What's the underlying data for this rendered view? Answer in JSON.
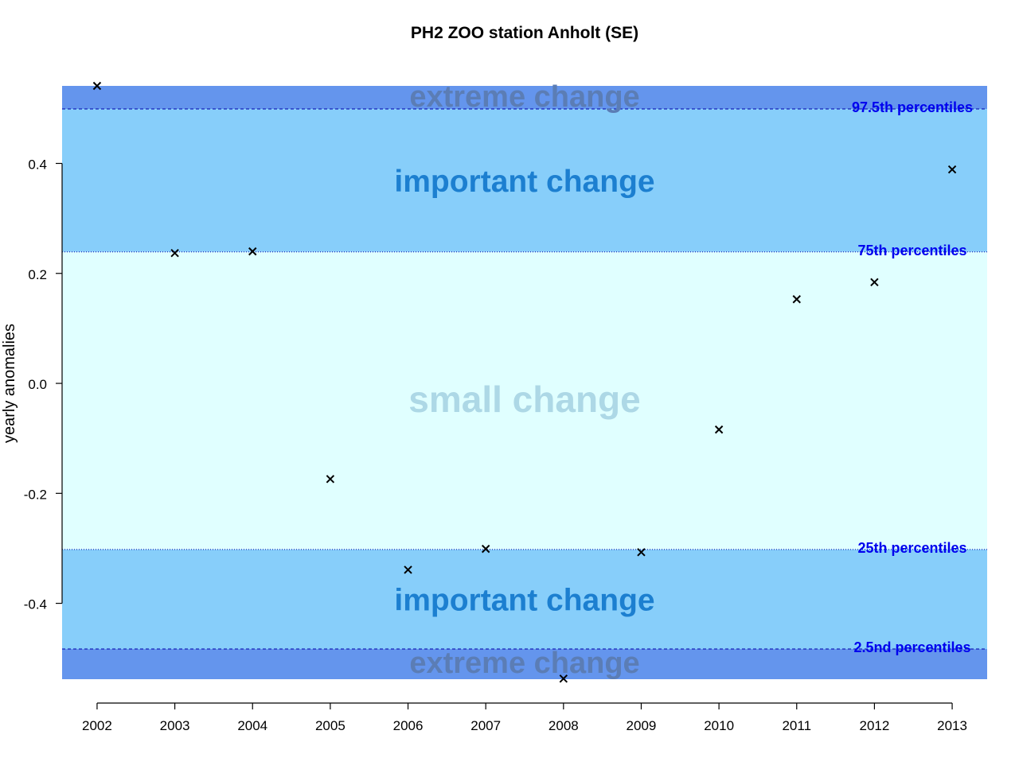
{
  "chart_data": {
    "type": "scatter",
    "title": "PH2 ZOO station Anholt (SE)",
    "xlabel": "",
    "ylabel": "yearly anomalies",
    "x": [
      2002,
      2003,
      2004,
      2005,
      2006,
      2007,
      2008,
      2009,
      2010,
      2011,
      2012,
      2013
    ],
    "y": [
      0.541,
      0.237,
      0.24,
      -0.174,
      -0.339,
      -0.301,
      -0.537,
      -0.307,
      -0.084,
      0.153,
      0.184,
      0.389
    ],
    "xlim": [
      2001.55,
      2013.45
    ],
    "ylim": [
      -0.538,
      0.541
    ],
    "x_ticks": [
      "2002",
      "2003",
      "2004",
      "2005",
      "2006",
      "2007",
      "2008",
      "2009",
      "2010",
      "2011",
      "2012",
      "2013"
    ],
    "y_ticks": [
      0.4,
      0.2,
      0.0,
      -0.2,
      -0.4
    ],
    "y_tick_labels": [
      "0.4",
      "0.2",
      "0.0",
      "-0.2",
      "-0.4"
    ],
    "marker": "x",
    "grid": false,
    "thresholds": [
      {
        "label": "97.5th percentiles",
        "value": 0.499,
        "style": "dashed"
      },
      {
        "label": "75th percentiles",
        "value": 0.239,
        "style": "dotted"
      },
      {
        "label": "25th percentiles",
        "value": -0.302,
        "style": "dotted"
      },
      {
        "label": "2.5nd percentiles",
        "value": -0.483,
        "style": "dashed"
      }
    ],
    "zones": [
      {
        "label": "extreme change",
        "from": 0.499,
        "to": 0.541,
        "color": "#6495ED",
        "text_color": "#5B7DB5"
      },
      {
        "label": "important change",
        "from": 0.239,
        "to": 0.499,
        "color": "#87CEFA",
        "text_color": "#1C7FD0"
      },
      {
        "label": "small change",
        "from": -0.302,
        "to": 0.239,
        "color": "#E0FFFF",
        "text_color": "#ADD8E6"
      },
      {
        "label": "important change",
        "from": -0.483,
        "to": -0.302,
        "color": "#87CEFA",
        "text_color": "#1C7FD0"
      },
      {
        "label": "extreme change",
        "from": -0.538,
        "to": -0.483,
        "color": "#6495ED",
        "text_color": "#5B7DB5"
      }
    ],
    "threshold_label_color": "#0000EE"
  }
}
